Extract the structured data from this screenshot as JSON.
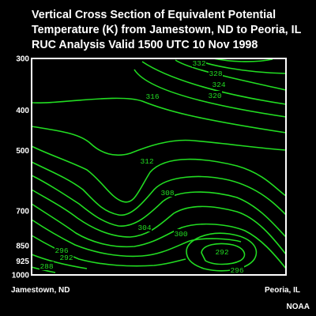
{
  "chart_data": {
    "type": "contour",
    "title": [
      "Vertical Cross Section of Equivalent Potential",
      "Temperature (K) from Jamestown, ND to Peoria, IL",
      "RUC Analysis Valid 1500 UTC  10 Nov 1998"
    ],
    "x_tick_labels": [
      "Jamestown, ND",
      "Peoria, IL"
    ],
    "y_axis": {
      "scale": "log-pressure",
      "range": [
        1000,
        300
      ],
      "tick_labels": [
        "300",
        "400",
        "500",
        "700",
        "850",
        "925",
        "1000"
      ]
    },
    "contour_interval": 2,
    "contour_labels": [
      "332",
      "328",
      "324",
      "320",
      "316",
      "312",
      "308",
      "304",
      "300",
      "296",
      "292",
      "292",
      "296",
      "288"
    ],
    "colors": {
      "contour": "#22dd22",
      "background": "#000000",
      "text": "#ffffff"
    }
  },
  "credit": "NOAA"
}
